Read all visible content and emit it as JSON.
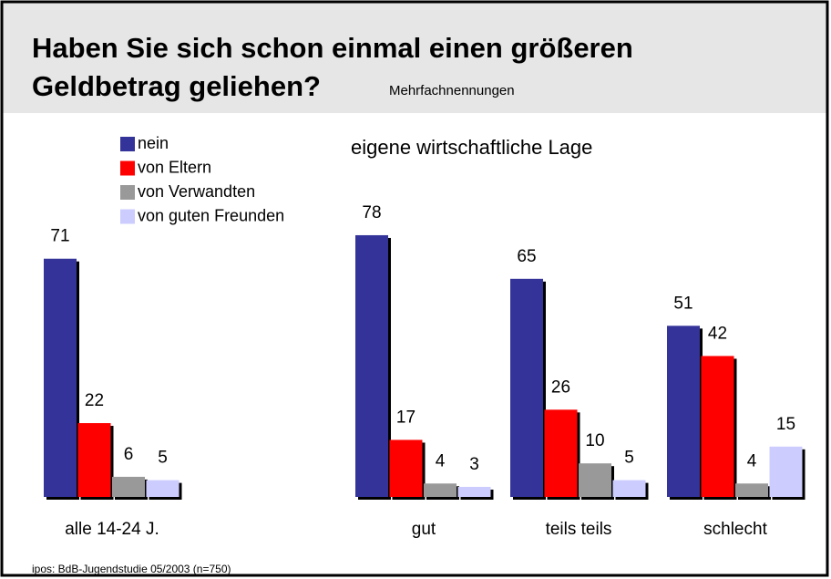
{
  "chart_data": {
    "type": "bar",
    "title_line1": "Haben Sie sich schon einmal einen größeren",
    "title_line2": "Geldbetrag geliehen?",
    "subtitle": "Mehrfachnennungen",
    "annotation": "eigene wirtschaftliche Lage",
    "source": "ipos: BdB-Jugendstudie 05/2003  (n=750)",
    "categories": [
      "alle 14-24 J.",
      "gut",
      "teils teils",
      "schlecht"
    ],
    "series": [
      {
        "name": "nein",
        "color": "#333399",
        "values": [
          71,
          78,
          65,
          51
        ]
      },
      {
        "name": "von Eltern",
        "color": "#ff0000",
        "values": [
          22,
          17,
          26,
          42
        ]
      },
      {
        "name": "von Verwandten",
        "color": "#999999",
        "values": [
          6,
          4,
          10,
          4
        ]
      },
      {
        "name": "von guten Freunden",
        "color": "#ccccff",
        "values": [
          5,
          3,
          5,
          15
        ]
      }
    ]
  }
}
